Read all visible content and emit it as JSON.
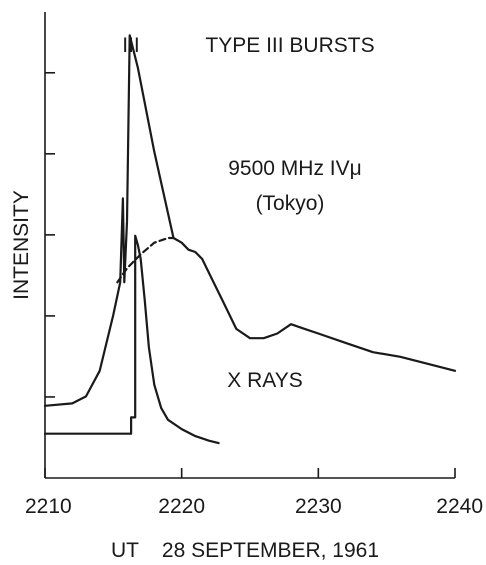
{
  "chart_data": {
    "type": "line",
    "xlabel": "UT    28 SEPTEMBER, 1961",
    "ylabel": "INTENSITY",
    "xlim": [
      2210,
      2240
    ],
    "ylim": [
      0,
      1
    ],
    "x_ticks": [
      "2210",
      "2220",
      "2230",
      "2240"
    ],
    "y_tick_count": 5,
    "grid": false,
    "annotations": {
      "type3_marker": "III",
      "type3_label": "TYPE III BURSTS",
      "microwave_label_line1": "9500 MHz IVμ",
      "microwave_label_line2": "(Tokyo)",
      "xray_label": "X RAYS"
    },
    "series": [
      {
        "id": "microwave_solid",
        "points": [
          [
            2210,
            0.155
          ],
          [
            2212,
            0.16
          ],
          [
            2213,
            0.175
          ],
          [
            2214,
            0.23
          ],
          [
            2215,
            0.35
          ],
          [
            2215.5,
            0.42
          ],
          [
            2215.7,
            0.6
          ],
          [
            2215.8,
            0.42
          ],
          [
            2216.0,
            0.55
          ],
          [
            2216.2,
            0.95
          ],
          [
            2216.8,
            0.88
          ],
          [
            2218,
            0.7
          ],
          [
            2219.4,
            0.515
          ],
          [
            2220,
            0.505
          ],
          [
            2220.5,
            0.49
          ],
          [
            2221,
            0.485
          ],
          [
            2221.5,
            0.47
          ],
          [
            2222,
            0.44
          ],
          [
            2223,
            0.38
          ],
          [
            2224,
            0.32
          ],
          [
            2225,
            0.3
          ],
          [
            2226,
            0.3
          ],
          [
            2227,
            0.31
          ],
          [
            2228,
            0.33
          ],
          [
            2229,
            0.32
          ],
          [
            2230,
            0.31
          ],
          [
            2232,
            0.29
          ],
          [
            2234,
            0.27
          ],
          [
            2236,
            0.26
          ],
          [
            2238,
            0.245
          ],
          [
            2240,
            0.23
          ]
        ]
      },
      {
        "id": "microwave_dashed",
        "points": [
          [
            2215.3,
            0.42
          ],
          [
            2216,
            0.45
          ],
          [
            2217,
            0.48
          ],
          [
            2218,
            0.505
          ],
          [
            2219,
            0.515
          ],
          [
            2219.4,
            0.515
          ]
        ]
      },
      {
        "id": "xrays",
        "points": [
          [
            2210,
            0.095
          ],
          [
            2216.3,
            0.095
          ],
          [
            2216.3,
            0.13
          ],
          [
            2216.6,
            0.13
          ],
          [
            2216.6,
            0.52
          ],
          [
            2216.8,
            0.5
          ],
          [
            2217,
            0.47
          ],
          [
            2217.3,
            0.38
          ],
          [
            2217.6,
            0.28
          ],
          [
            2218,
            0.2
          ],
          [
            2218.5,
            0.15
          ],
          [
            2219,
            0.125
          ],
          [
            2220,
            0.105
          ],
          [
            2221,
            0.09
          ],
          [
            2222,
            0.08
          ],
          [
            2222.7,
            0.075
          ]
        ]
      }
    ]
  }
}
